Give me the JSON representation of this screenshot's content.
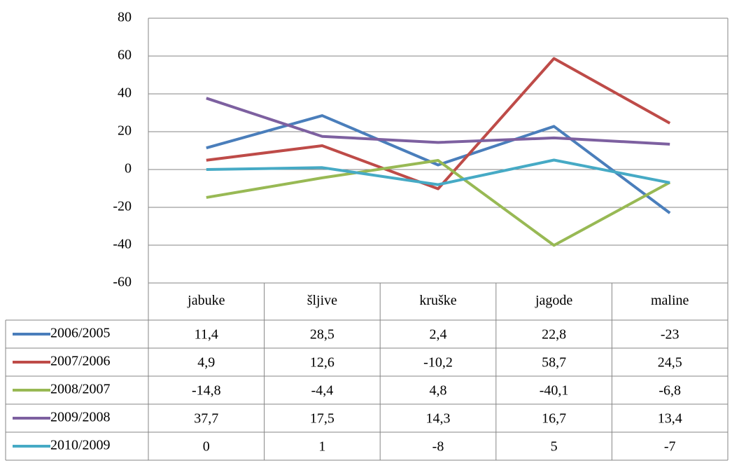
{
  "chart_data": {
    "type": "line",
    "categories": [
      "jabuke",
      "šljive",
      "kruške",
      "jagode",
      "maline"
    ],
    "series": [
      {
        "name": "2006/2005",
        "color": "#4a7ebb",
        "values": [
          11.4,
          28.5,
          2.4,
          22.8,
          -23
        ],
        "value_labels": [
          "11,4",
          "28,5",
          "2,4",
          "22,8",
          "-23"
        ]
      },
      {
        "name": "2007/2006",
        "color": "#be4b48",
        "values": [
          4.9,
          12.6,
          -10.2,
          58.7,
          24.5
        ],
        "value_labels": [
          "4,9",
          "12,6",
          "-10,2",
          "58,7",
          "24,5"
        ]
      },
      {
        "name": "2008/2007",
        "color": "#98b954",
        "values": [
          -14.8,
          -4.4,
          4.8,
          -40.1,
          -6.8
        ],
        "value_labels": [
          "-14,8",
          "-4,4",
          "4,8",
          "-40,1",
          "-6,8"
        ]
      },
      {
        "name": "2009/2008",
        "color": "#7d60a0",
        "values": [
          37.7,
          17.5,
          14.3,
          16.7,
          13.4
        ],
        "value_labels": [
          "37,7",
          "17,5",
          "14,3",
          "16,7",
          "13,4"
        ]
      },
      {
        "name": "2010/2009",
        "color": "#46aac5",
        "values": [
          0,
          1,
          -8,
          5,
          -7
        ],
        "value_labels": [
          "0",
          "1",
          "-8",
          "5",
          "-7"
        ]
      }
    ],
    "ylim": [
      -60,
      80
    ],
    "yticks": [
      -60,
      -40,
      -20,
      0,
      20,
      40,
      60,
      80
    ],
    "grid": true
  }
}
